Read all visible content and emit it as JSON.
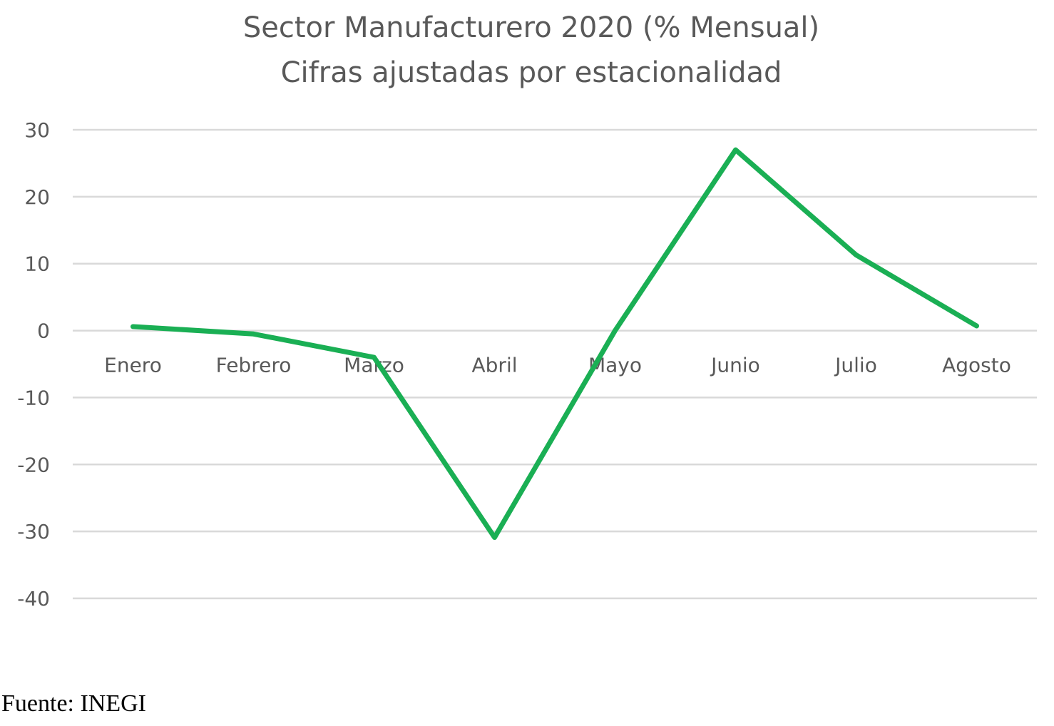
{
  "chart_data": {
    "type": "line",
    "title": "Sector Manufacturero 2020 (% Mensual)",
    "subtitle": "Cifras ajustadas por estacionalidad",
    "categories": [
      "Enero",
      "Febrero",
      "Marzo",
      "Abril",
      "Mayo",
      "Junio",
      "Julio",
      "Agosto"
    ],
    "series": [
      {
        "values": [
          0.6,
          -0.5,
          -4.0,
          -30.9,
          0.0,
          27.0,
          11.3,
          0.7
        ],
        "color": "#1aaf54"
      }
    ],
    "ylim": [
      -40,
      30
    ],
    "yticks": [
      30,
      20,
      10,
      0,
      -10,
      -20,
      -30,
      -40
    ],
    "grid": true,
    "legend": "none"
  },
  "footer": {
    "source": "Fuente: INEGI"
  }
}
